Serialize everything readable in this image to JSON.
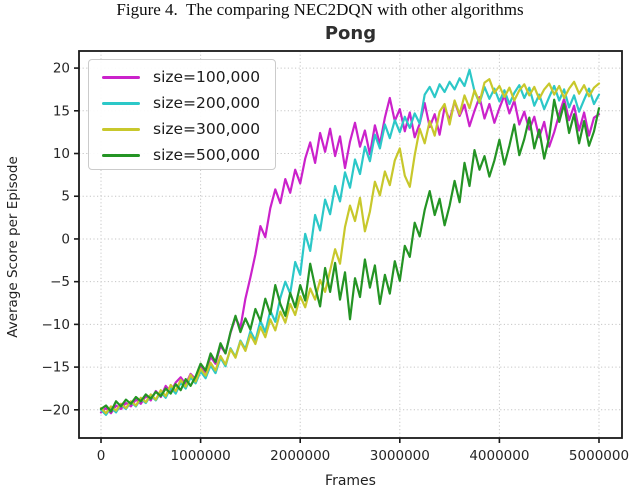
{
  "caption": "Figure 4.  The comparing NEC2DQN with other algorithms",
  "chart_data": {
    "type": "line",
    "title": "Pong",
    "xlabel": "Frames",
    "ylabel": "Average Score per Episode",
    "xlim": [
      -221000,
      5231000
    ],
    "ylim": [
      -23.3,
      22.0
    ],
    "grid": "dotted",
    "legend_position": "upper left",
    "x_ticks": [
      0,
      1000000,
      2000000,
      3000000,
      4000000,
      5000000
    ],
    "x_tick_labels": [
      "0",
      "1000000",
      "2000000",
      "3000000",
      "4000000",
      "5000000"
    ],
    "y_ticks": [
      20,
      15,
      10,
      5,
      0,
      -5,
      -10,
      -15,
      -20
    ],
    "y_tick_labels": [
      "20",
      "15",
      "10",
      "5",
      "0",
      "−5",
      "−10",
      "−15",
      "−20"
    ],
    "series": [
      {
        "id": "size-100000",
        "name": "size=100,000",
        "color": "#cb22cb",
        "x_start": 0,
        "x_step": 50000,
        "values": [
          -20.3,
          -19.8,
          -20.4,
          -19.5,
          -19.9,
          -19.2,
          -19.6,
          -18.8,
          -19.3,
          -18.4,
          -18.9,
          -17.8,
          -18.5,
          -17.2,
          -17.9,
          -16.8,
          -16.2,
          -17.0,
          -15.8,
          -16.4,
          -14.9,
          -15.6,
          -13.8,
          -14.6,
          -12.5,
          -13.4,
          -11.0,
          -9.2,
          -10.4,
          -7.0,
          -4.5,
          -1.8,
          1.5,
          0.2,
          3.6,
          5.8,
          4.2,
          7.0,
          5.4,
          8.1,
          6.5,
          9.4,
          11.3,
          8.9,
          12.4,
          10.2,
          12.9,
          9.7,
          12.0,
          8.3,
          11.4,
          13.6,
          10.8,
          12.7,
          9.9,
          13.3,
          11.1,
          14.2,
          16.5,
          13.8,
          15.2,
          12.6,
          14.8,
          11.9,
          13.5,
          15.9,
          13.1,
          14.6,
          12.2,
          15.4,
          13.9,
          16.1,
          14.4,
          15.7,
          13.2,
          15.0,
          16.6,
          14.1,
          15.8,
          13.6,
          15.3,
          16.8,
          14.7,
          16.2,
          13.4,
          14.9,
          12.8,
          14.3,
          11.9,
          13.7,
          10.8,
          12.5,
          14.6,
          16.4,
          13.9,
          15.6,
          12.7,
          14.8,
          12.1,
          14.2,
          14.6
        ]
      },
      {
        "id": "size-200000",
        "name": "size=200,000",
        "color": "#2cc8c8",
        "x_start": 0,
        "x_step": 50000,
        "values": [
          -20.0,
          -20.6,
          -19.7,
          -20.3,
          -19.4,
          -19.9,
          -19.1,
          -19.6,
          -18.7,
          -19.2,
          -18.3,
          -18.9,
          -17.9,
          -18.6,
          -17.4,
          -18.1,
          -16.8,
          -17.5,
          -16.2,
          -16.9,
          -15.5,
          -16.3,
          -14.8,
          -15.7,
          -13.9,
          -14.9,
          -12.8,
          -13.8,
          -11.9,
          -12.9,
          -10.8,
          -11.9,
          -9.6,
          -10.9,
          -8.4,
          -9.7,
          -6.9,
          -5.0,
          -6.4,
          -2.7,
          -4.2,
          0.6,
          -1.4,
          2.8,
          1.0,
          4.6,
          2.9,
          6.2,
          4.4,
          7.8,
          6.0,
          9.3,
          7.6,
          10.8,
          9.1,
          12.2,
          10.6,
          13.4,
          11.8,
          13.9,
          12.5,
          14.3,
          13.0,
          14.7,
          13.5,
          16.9,
          17.8,
          16.6,
          18.1,
          17.2,
          18.4,
          17.5,
          18.8,
          17.9,
          19.8,
          17.3,
          15.9,
          17.8,
          16.4,
          17.6,
          16.1,
          17.4,
          15.8,
          17.1,
          18.0,
          16.5,
          17.7,
          15.6,
          16.9,
          15.2,
          16.6,
          17.9,
          16.2,
          17.5,
          15.4,
          16.8,
          14.9,
          16.3,
          17.6,
          15.8,
          16.9
        ]
      },
      {
        "id": "size-300000",
        "name": "size=300,000",
        "color": "#c8c82c",
        "x_start": 0,
        "x_step": 50000,
        "values": [
          -19.8,
          -20.4,
          -19.6,
          -20.1,
          -19.3,
          -19.8,
          -19.0,
          -19.5,
          -18.6,
          -19.1,
          -18.2,
          -18.8,
          -17.7,
          -18.4,
          -17.1,
          -17.8,
          -16.5,
          -17.3,
          -15.9,
          -16.7,
          -15.2,
          -16.0,
          -14.5,
          -15.4,
          -13.7,
          -14.7,
          -12.9,
          -13.9,
          -12.0,
          -13.1,
          -11.2,
          -12.3,
          -10.3,
          -11.5,
          -9.4,
          -10.7,
          -8.5,
          -9.8,
          -7.6,
          -8.9,
          -6.7,
          -8.0,
          -5.8,
          -7.1,
          -4.8,
          -6.2,
          -3.7,
          -1.2,
          -2.9,
          1.4,
          3.9,
          2.1,
          4.8,
          0.9,
          3.2,
          6.7,
          5.1,
          7.9,
          6.3,
          9.2,
          10.6,
          7.4,
          6.1,
          9.8,
          12.9,
          11.2,
          13.8,
          12.1,
          14.9,
          15.8,
          13.4,
          16.2,
          14.6,
          16.8,
          15.3,
          17.4,
          16.0,
          18.3,
          18.7,
          17.1,
          17.9,
          16.6,
          17.7,
          16.2,
          17.4,
          18.1,
          16.8,
          17.8,
          16.4,
          17.5,
          18.2,
          16.9,
          17.9,
          16.5,
          17.6,
          18.4,
          17.0,
          18.0,
          16.7,
          17.7,
          18.2
        ]
      },
      {
        "id": "size-500000",
        "name": "size=500,000",
        "color": "#249424",
        "x_start": 0,
        "x_step": 50000,
        "values": [
          -19.9,
          -19.5,
          -20.2,
          -19.0,
          -19.6,
          -18.8,
          -19.3,
          -18.5,
          -19.0,
          -18.2,
          -18.7,
          -17.9,
          -18.4,
          -17.5,
          -18.1,
          -17.0,
          -17.7,
          -16.4,
          -17.2,
          -16.1,
          -14.6,
          -15.4,
          -13.4,
          -14.4,
          -12.2,
          -13.4,
          -10.9,
          -9.0,
          -10.9,
          -9.3,
          -10.6,
          -8.2,
          -9.6,
          -7.0,
          -8.8,
          -5.4,
          -7.6,
          -9.0,
          -6.3,
          -8.0,
          -5.4,
          -7.2,
          -2.9,
          -5.6,
          -7.9,
          -3.4,
          -6.2,
          -2.8,
          -7.1,
          -3.9,
          -9.4,
          -4.6,
          -6.8,
          -2.4,
          -5.7,
          -3.1,
          -7.6,
          -4.2,
          -6.4,
          -2.6,
          -4.9,
          -0.8,
          -2.1,
          1.9,
          0.3,
          3.4,
          5.6,
          2.8,
          4.7,
          1.6,
          3.9,
          6.8,
          4.3,
          8.9,
          6.2,
          10.4,
          8.1,
          9.7,
          7.3,
          9.2,
          11.6,
          8.7,
          10.9,
          13.4,
          9.8,
          11.7,
          14.2,
          10.6,
          12.8,
          9.4,
          11.9,
          16.3,
          13.7,
          15.8,
          12.4,
          14.6,
          11.2,
          13.8,
          10.9,
          12.6,
          15.3
        ]
      }
    ]
  }
}
